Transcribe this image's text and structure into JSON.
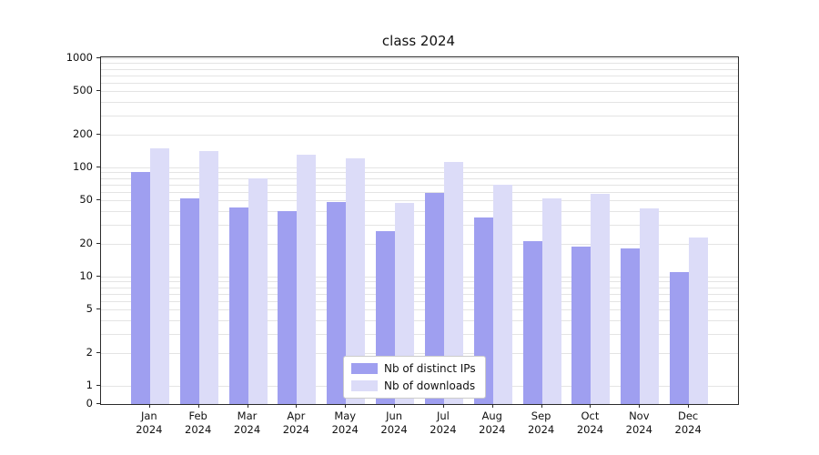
{
  "title": "class 2024",
  "chart_data": {
    "type": "bar",
    "title": "class 2024",
    "categories": [
      "Jan",
      "Feb",
      "Mar",
      "Apr",
      "May",
      "Jun",
      "Jul",
      "Aug",
      "Sep",
      "Oct",
      "Nov",
      "Dec"
    ],
    "year_label": "2024",
    "series": [
      {
        "name": "Nb of distinct IPs",
        "color": "#9f9ff0",
        "values": [
          90,
          52,
          43,
          40,
          48,
          26,
          58,
          35,
          21,
          19,
          18,
          11
        ]
      },
      {
        "name": "Nb of downloads",
        "color": "#dcdcf8",
        "values": [
          150,
          140,
          80,
          130,
          120,
          47,
          112,
          70,
          52,
          57,
          42,
          23
        ]
      }
    ],
    "xlabel": "",
    "ylabel": "",
    "yscale": "symlog",
    "yticks": [
      0,
      1,
      2,
      5,
      10,
      20,
      50,
      100,
      200,
      500,
      1000
    ],
    "ylim": [
      0,
      1200
    ],
    "grid": "horizontal",
    "legend_position": "lower center",
    "colors": {
      "grid": "#e4e4e4",
      "spine": "#2b2b2b",
      "background": "#ffffff"
    }
  }
}
